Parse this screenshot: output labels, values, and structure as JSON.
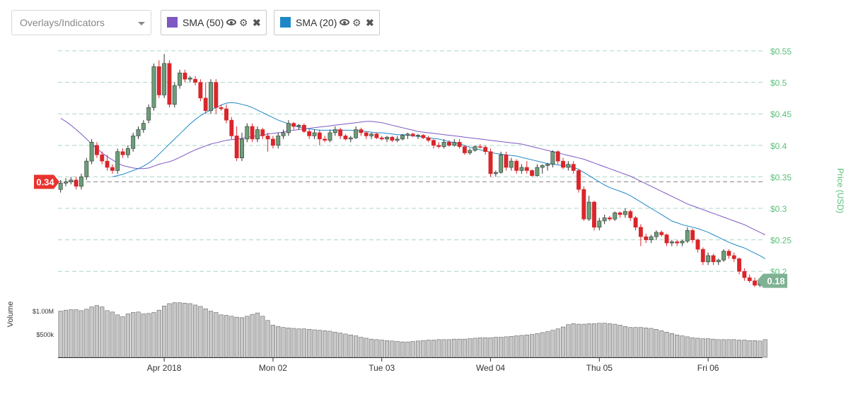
{
  "toolbar": {
    "select_label": "Overlays/Indicators",
    "chips": [
      {
        "label": "SMA (50)",
        "color": "#7e57c2"
      },
      {
        "label": "SMA (20)",
        "color": "#1e88c7"
      }
    ]
  },
  "chart_data": {
    "type": "candlestick",
    "title": "",
    "ylabel": "Price (USD)",
    "volume_label": "Volume",
    "ylim": [
      0.17,
      0.55
    ],
    "y_ticks": [
      0.55,
      0.5,
      0.45,
      0.4,
      0.35,
      0.3,
      0.25,
      0.2
    ],
    "y_tick_labels": [
      "$0.55",
      "$0.5",
      "$0.45",
      "$0.4",
      "$0.35",
      "$0.3",
      "$0.25",
      "$0.2"
    ],
    "volume_ticks": [
      1000000,
      500000
    ],
    "volume_tick_labels": [
      "$1.00M",
      "$500k"
    ],
    "volume_max": 1300000,
    "x_labels": [
      "Apr 2018",
      "Mon 02",
      "Tue 03",
      "Wed 04",
      "Thu 05",
      "Fri 06"
    ],
    "x_label_index": [
      20,
      41,
      62,
      83,
      104,
      125
    ],
    "left_marker": "0.34",
    "left_marker_value": 0.342,
    "last_price_label": "0.18",
    "last_price_value": 0.185,
    "up_color": "#6b9e7a",
    "down_color": "#d9262b",
    "sma50_color": "#7e57c2",
    "sma20_color": "#1e88c7",
    "grid_color": "#a8d8c4",
    "price_color": "#5cbf7a",
    "ohlc": [
      [
        0.33,
        0.345,
        0.325,
        0.34
      ],
      [
        0.34,
        0.348,
        0.335,
        0.342
      ],
      [
        0.342,
        0.35,
        0.338,
        0.345
      ],
      [
        0.345,
        0.35,
        0.33,
        0.335
      ],
      [
        0.335,
        0.355,
        0.33,
        0.35
      ],
      [
        0.35,
        0.38,
        0.345,
        0.375
      ],
      [
        0.375,
        0.41,
        0.37,
        0.405
      ],
      [
        0.4,
        0.405,
        0.38,
        0.385
      ],
      [
        0.385,
        0.39,
        0.37,
        0.375
      ],
      [
        0.375,
        0.385,
        0.36,
        0.365
      ],
      [
        0.365,
        0.37,
        0.355,
        0.36
      ],
      [
        0.36,
        0.395,
        0.355,
        0.39
      ],
      [
        0.39,
        0.395,
        0.38,
        0.385
      ],
      [
        0.385,
        0.4,
        0.38,
        0.395
      ],
      [
        0.395,
        0.42,
        0.39,
        0.415
      ],
      [
        0.415,
        0.43,
        0.41,
        0.425
      ],
      [
        0.425,
        0.44,
        0.42,
        0.435
      ],
      [
        0.44,
        0.465,
        0.435,
        0.46
      ],
      [
        0.46,
        0.53,
        0.455,
        0.525
      ],
      [
        0.525,
        0.535,
        0.475,
        0.48
      ],
      [
        0.48,
        0.545,
        0.475,
        0.53
      ],
      [
        0.53,
        0.535,
        0.46,
        0.465
      ],
      [
        0.465,
        0.5,
        0.46,
        0.495
      ],
      [
        0.495,
        0.52,
        0.49,
        0.515
      ],
      [
        0.515,
        0.52,
        0.5,
        0.505
      ],
      [
        0.505,
        0.51,
        0.5,
        0.507
      ],
      [
        0.505,
        0.51,
        0.495,
        0.5
      ],
      [
        0.5,
        0.505,
        0.47,
        0.475
      ],
      [
        0.475,
        0.5,
        0.45,
        0.455
      ],
      [
        0.455,
        0.505,
        0.45,
        0.5
      ],
      [
        0.5,
        0.505,
        0.45,
        0.46
      ],
      [
        0.46,
        0.465,
        0.455,
        0.458
      ],
      [
        0.458,
        0.465,
        0.435,
        0.44
      ],
      [
        0.44,
        0.445,
        0.41,
        0.415
      ],
      [
        0.415,
        0.43,
        0.375,
        0.38
      ],
      [
        0.38,
        0.42,
        0.375,
        0.41
      ],
      [
        0.41,
        0.435,
        0.405,
        0.43
      ],
      [
        0.43,
        0.435,
        0.405,
        0.41
      ],
      [
        0.41,
        0.43,
        0.405,
        0.425
      ],
      [
        0.425,
        0.428,
        0.41,
        0.415
      ],
      [
        0.415,
        0.42,
        0.39,
        0.41
      ],
      [
        0.41,
        0.415,
        0.395,
        0.4
      ],
      [
        0.4,
        0.42,
        0.395,
        0.415
      ],
      [
        0.415,
        0.425,
        0.41,
        0.42
      ],
      [
        0.42,
        0.44,
        0.415,
        0.435
      ],
      [
        0.435,
        0.437,
        0.425,
        0.43
      ],
      [
        0.43,
        0.434,
        0.425,
        0.432
      ],
      [
        0.432,
        0.435,
        0.42,
        0.422
      ],
      [
        0.422,
        0.425,
        0.41,
        0.415
      ],
      [
        0.415,
        0.425,
        0.41,
        0.42
      ],
      [
        0.42,
        0.425,
        0.4,
        0.41
      ],
      [
        0.41,
        0.415,
        0.405,
        0.408
      ],
      [
        0.408,
        0.425,
        0.405,
        0.42
      ],
      [
        0.42,
        0.43,
        0.415,
        0.425
      ],
      [
        0.425,
        0.428,
        0.41,
        0.415
      ],
      [
        0.415,
        0.418,
        0.408,
        0.41
      ],
      [
        0.41,
        0.415,
        0.405,
        0.412
      ],
      [
        0.412,
        0.43,
        0.41,
        0.425
      ],
      [
        0.425,
        0.428,
        0.415,
        0.42
      ],
      [
        0.42,
        0.422,
        0.41,
        0.415
      ],
      [
        0.415,
        0.42,
        0.41,
        0.418
      ],
      [
        0.418,
        0.42,
        0.41,
        0.412
      ],
      [
        0.412,
        0.415,
        0.408,
        0.41
      ],
      [
        0.41,
        0.415,
        0.405,
        0.413
      ],
      [
        0.413,
        0.415,
        0.405,
        0.408
      ],
      [
        0.408,
        0.415,
        0.405,
        0.41
      ],
      [
        0.41,
        0.418,
        0.408,
        0.416
      ],
      [
        0.416,
        0.42,
        0.41,
        0.418
      ],
      [
        0.418,
        0.42,
        0.413,
        0.415
      ],
      [
        0.415,
        0.418,
        0.41,
        0.416
      ],
      [
        0.416,
        0.418,
        0.41,
        0.412
      ],
      [
        0.412,
        0.415,
        0.405,
        0.408
      ],
      [
        0.408,
        0.41,
        0.395,
        0.4
      ],
      [
        0.4,
        0.405,
        0.395,
        0.398
      ],
      [
        0.398,
        0.41,
        0.395,
        0.405
      ],
      [
        0.405,
        0.408,
        0.398,
        0.4
      ],
      [
        0.4,
        0.41,
        0.398,
        0.405
      ],
      [
        0.405,
        0.41,
        0.395,
        0.398
      ],
      [
        0.398,
        0.4,
        0.385,
        0.388
      ],
      [
        0.388,
        0.395,
        0.385,
        0.392
      ],
      [
        0.392,
        0.4,
        0.39,
        0.398
      ],
      [
        0.398,
        0.402,
        0.395,
        0.397
      ],
      [
        0.397,
        0.4,
        0.385,
        0.39
      ],
      [
        0.39,
        0.395,
        0.35,
        0.355
      ],
      [
        0.355,
        0.36,
        0.35,
        0.357
      ],
      [
        0.357,
        0.39,
        0.355,
        0.385
      ],
      [
        0.385,
        0.39,
        0.36,
        0.365
      ],
      [
        0.365,
        0.38,
        0.36,
        0.375
      ],
      [
        0.375,
        0.378,
        0.355,
        0.36
      ],
      [
        0.36,
        0.37,
        0.355,
        0.365
      ],
      [
        0.365,
        0.375,
        0.355,
        0.36
      ],
      [
        0.36,
        0.362,
        0.35,
        0.352
      ],
      [
        0.352,
        0.37,
        0.35,
        0.365
      ],
      [
        0.365,
        0.37,
        0.355,
        0.368
      ],
      [
        0.368,
        0.372,
        0.36,
        0.37
      ],
      [
        0.37,
        0.392,
        0.365,
        0.39
      ],
      [
        0.39,
        0.392,
        0.37,
        0.375
      ],
      [
        0.375,
        0.38,
        0.362,
        0.365
      ],
      [
        0.365,
        0.375,
        0.36,
        0.37
      ],
      [
        0.37,
        0.375,
        0.355,
        0.36
      ],
      [
        0.36,
        0.362,
        0.325,
        0.33
      ],
      [
        0.33,
        0.335,
        0.28,
        0.283
      ],
      [
        0.283,
        0.32,
        0.28,
        0.31
      ],
      [
        0.31,
        0.312,
        0.265,
        0.27
      ],
      [
        0.27,
        0.285,
        0.265,
        0.28
      ],
      [
        0.28,
        0.29,
        0.275,
        0.285
      ],
      [
        0.285,
        0.288,
        0.28,
        0.283
      ],
      [
        0.283,
        0.295,
        0.28,
        0.293
      ],
      [
        0.293,
        0.295,
        0.285,
        0.29
      ],
      [
        0.29,
        0.3,
        0.285,
        0.295
      ],
      [
        0.295,
        0.298,
        0.28,
        0.285
      ],
      [
        0.285,
        0.288,
        0.265,
        0.27
      ],
      [
        0.27,
        0.275,
        0.24,
        0.255
      ],
      [
        0.255,
        0.26,
        0.245,
        0.25
      ],
      [
        0.25,
        0.258,
        0.245,
        0.255
      ],
      [
        0.255,
        0.265,
        0.25,
        0.262
      ],
      [
        0.262,
        0.265,
        0.255,
        0.258
      ],
      [
        0.258,
        0.26,
        0.24,
        0.245
      ],
      [
        0.245,
        0.25,
        0.24,
        0.247
      ],
      [
        0.247,
        0.25,
        0.24,
        0.245
      ],
      [
        0.245,
        0.25,
        0.24,
        0.248
      ],
      [
        0.248,
        0.27,
        0.245,
        0.265
      ],
      [
        0.265,
        0.268,
        0.245,
        0.25
      ],
      [
        0.25,
        0.252,
        0.23,
        0.235
      ],
      [
        0.235,
        0.238,
        0.21,
        0.215
      ],
      [
        0.215,
        0.23,
        0.21,
        0.225
      ],
      [
        0.225,
        0.228,
        0.21,
        0.215
      ],
      [
        0.215,
        0.22,
        0.21,
        0.218
      ],
      [
        0.218,
        0.235,
        0.215,
        0.232
      ],
      [
        0.232,
        0.235,
        0.22,
        0.225
      ],
      [
        0.225,
        0.23,
        0.215,
        0.22
      ],
      [
        0.22,
        0.222,
        0.195,
        0.2
      ],
      [
        0.2,
        0.205,
        0.185,
        0.19
      ],
      [
        0.19,
        0.195,
        0.182,
        0.185
      ],
      [
        0.185,
        0.19,
        0.175,
        0.178
      ],
      [
        0.178,
        0.188,
        0.175,
        0.185
      ]
    ],
    "sma50": [
      0.443,
      0.438,
      0.432,
      0.425,
      0.418,
      0.41,
      0.402,
      0.395,
      0.388,
      0.382,
      0.377,
      0.372,
      0.368,
      0.366,
      0.364,
      0.363,
      0.363,
      0.364,
      0.367,
      0.37,
      0.372,
      0.374,
      0.377,
      0.381,
      0.385,
      0.389,
      0.393,
      0.396,
      0.399,
      0.402,
      0.404,
      0.406,
      0.408,
      0.409,
      0.41,
      0.411,
      0.413,
      0.414,
      0.415,
      0.416,
      0.418,
      0.419,
      0.42,
      0.421,
      0.423,
      0.424,
      0.425,
      0.426,
      0.427,
      0.428,
      0.429,
      0.43,
      0.431,
      0.432,
      0.433,
      0.434,
      0.435,
      0.436,
      0.437,
      0.438,
      0.438,
      0.437,
      0.436,
      0.434,
      0.432,
      0.43,
      0.428,
      0.426,
      0.424,
      0.422,
      0.421,
      0.42,
      0.419,
      0.418,
      0.417,
      0.416,
      0.415,
      0.414,
      0.413,
      0.412,
      0.411,
      0.41,
      0.409,
      0.408,
      0.407,
      0.406,
      0.405,
      0.404,
      0.403,
      0.402,
      0.4,
      0.398,
      0.396,
      0.394,
      0.392,
      0.39,
      0.388,
      0.386,
      0.384,
      0.382,
      0.38,
      0.378,
      0.375,
      0.372,
      0.369,
      0.366,
      0.363,
      0.36,
      0.357,
      0.354,
      0.351,
      0.347,
      0.343,
      0.339,
      0.335,
      0.331,
      0.327,
      0.323,
      0.319,
      0.315,
      0.311,
      0.307,
      0.304,
      0.301,
      0.298,
      0.295,
      0.292,
      0.289,
      0.286,
      0.283,
      0.28,
      0.277,
      0.274,
      0.27,
      0.266,
      0.262,
      0.258
    ],
    "sma20": [
      null,
      null,
      null,
      null,
      null,
      null,
      null,
      null,
      null,
      null,
      0.35,
      0.352,
      0.354,
      0.357,
      0.36,
      0.363,
      0.367,
      0.372,
      0.378,
      0.386,
      0.394,
      0.402,
      0.41,
      0.418,
      0.426,
      0.434,
      0.441,
      0.447,
      0.452,
      0.456,
      0.46,
      0.464,
      0.467,
      0.468,
      0.467,
      0.465,
      0.463,
      0.46,
      0.456,
      0.452,
      0.448,
      0.444,
      0.44,
      0.437,
      0.434,
      0.431,
      0.429,
      0.427,
      0.426,
      0.425,
      0.424,
      0.424,
      0.424,
      0.424,
      0.424,
      0.424,
      0.424,
      0.423,
      0.423,
      0.422,
      0.421,
      0.42,
      0.42,
      0.419,
      0.418,
      0.417,
      0.417,
      0.416,
      0.415,
      0.414,
      0.413,
      0.412,
      0.411,
      0.41,
      0.408,
      0.406,
      0.404,
      0.402,
      0.4,
      0.397,
      0.395,
      0.393,
      0.391,
      0.389,
      0.387,
      0.386,
      0.385,
      0.384,
      0.383,
      0.381,
      0.379,
      0.377,
      0.375,
      0.373,
      0.371,
      0.37,
      0.369,
      0.368,
      0.367,
      0.365,
      0.362,
      0.357,
      0.352,
      0.347,
      0.342,
      0.337,
      0.333,
      0.33,
      0.327,
      0.324,
      0.32,
      0.315,
      0.31,
      0.305,
      0.3,
      0.295,
      0.29,
      0.285,
      0.28,
      0.277,
      0.274,
      0.272,
      0.27,
      0.268,
      0.265,
      0.262,
      0.258,
      0.254,
      0.25,
      0.246,
      0.243,
      0.24,
      0.237,
      0.233,
      0.229,
      0.225,
      0.22
    ],
    "volume": [
      990000,
      1010000,
      1020000,
      1020000,
      1000000,
      1030000,
      1080000,
      1110000,
      1080000,
      1000000,
      970000,
      910000,
      870000,
      930000,
      960000,
      970000,
      930000,
      940000,
      960000,
      1010000,
      1100000,
      1150000,
      1170000,
      1170000,
      1160000,
      1150000,
      1120000,
      1090000,
      1040000,
      990000,
      960000,
      910000,
      900000,
      880000,
      860000,
      850000,
      880000,
      920000,
      950000,
      880000,
      790000,
      690000,
      660000,
      640000,
      630000,
      620000,
      610000,
      610000,
      600000,
      590000,
      580000,
      570000,
      560000,
      540000,
      520000,
      500000,
      480000,
      460000,
      430000,
      410000,
      390000,
      380000,
      370000,
      360000,
      350000,
      340000,
      330000,
      330000,
      340000,
      350000,
      360000,
      370000,
      370000,
      380000,
      380000,
      380000,
      390000,
      390000,
      390000,
      400000,
      410000,
      420000,
      420000,
      420000,
      430000,
      430000,
      440000,
      450000,
      460000,
      470000,
      480000,
      490000,
      510000,
      530000,
      550000,
      580000,
      610000,
      650000,
      700000,
      720000,
      710000,
      710000,
      720000,
      720000,
      730000,
      730000,
      720000,
      710000,
      690000,
      660000,
      640000,
      640000,
      640000,
      630000,
      620000,
      600000,
      570000,
      540000,
      510000,
      480000,
      460000,
      440000,
      420000,
      410000,
      400000,
      400000,
      390000,
      380000,
      380000,
      380000,
      380000,
      370000,
      370000,
      360000,
      360000,
      350000,
      380000
    ]
  }
}
